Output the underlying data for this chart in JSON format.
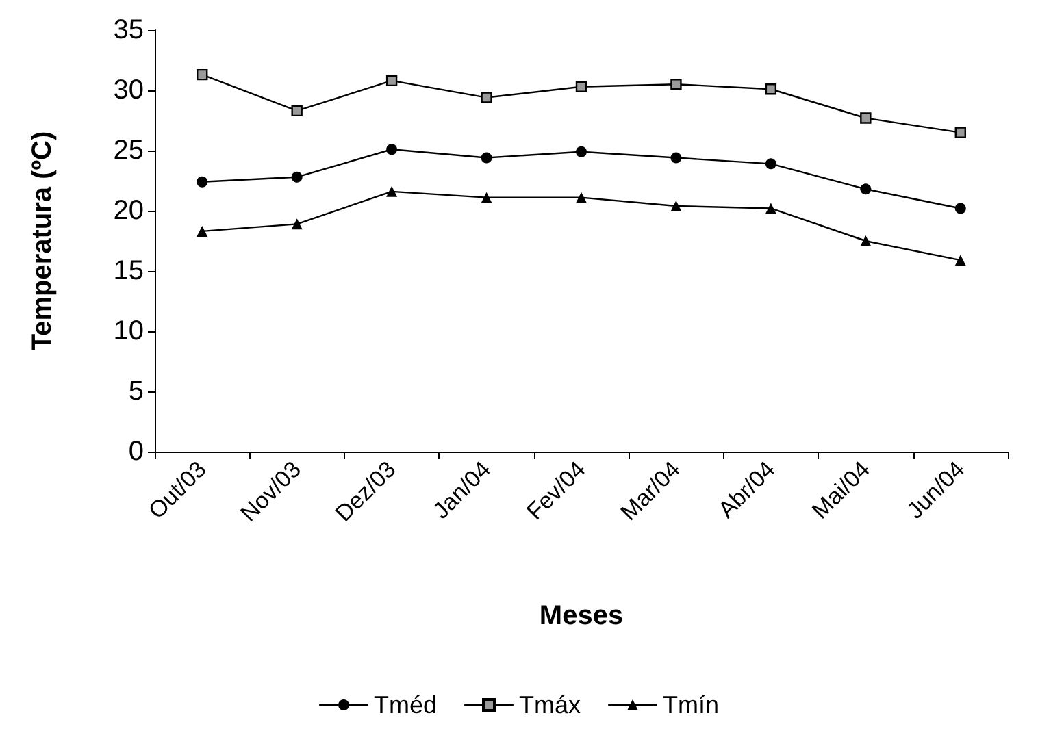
{
  "chart_data": {
    "type": "line",
    "xlabel": "Meses",
    "ylabel": "Temperatura (ºC)",
    "categories": [
      "Out/03",
      "Nov/03",
      "Dez/03",
      "Jan/04",
      "Fev/04",
      "Mar/04",
      "Abr/04",
      "Mai/04",
      "Jun/04"
    ],
    "series": [
      {
        "name": "Tméd",
        "color": "#000000",
        "marker": "circle",
        "values": [
          22.4,
          22.8,
          25.1,
          24.4,
          24.9,
          24.4,
          23.9,
          21.8,
          20.2
        ]
      },
      {
        "name": "Tmáx",
        "color": "#000000",
        "marker": "square",
        "values": [
          31.3,
          28.3,
          30.8,
          29.4,
          30.3,
          30.5,
          30.1,
          27.7,
          26.5
        ]
      },
      {
        "name": "Tmín",
        "color": "#000000",
        "marker": "triangle",
        "values": [
          18.3,
          18.9,
          21.6,
          21.1,
          21.1,
          20.4,
          20.2,
          17.5,
          15.9
        ]
      }
    ],
    "ylim": [
      0,
      35
    ],
    "yticks": [
      0,
      5,
      10,
      15,
      20,
      25,
      30,
      35
    ],
    "grid": false,
    "legend": "bottom",
    "line_style": "solid"
  }
}
